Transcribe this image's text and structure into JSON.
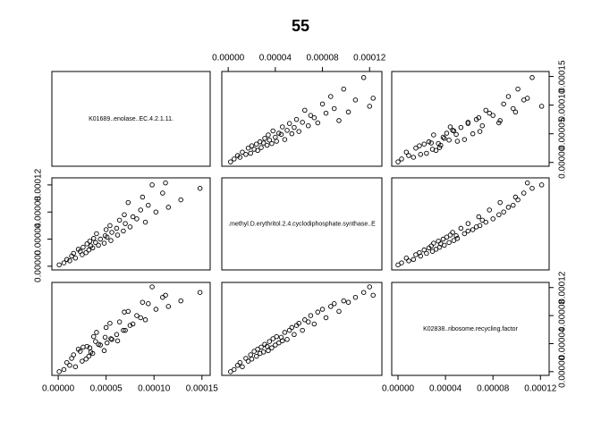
{
  "chart_data": {
    "type": "pairs",
    "title": "55",
    "variables": [
      {
        "name": "K01689..enolase..EC.4.2.1.11.",
        "values": [
          1e-06,
          6e-06,
          1.2e-05,
          9e-06,
          1.8e-05,
          1.4e-05,
          2.5e-05,
          1.6e-05,
          2.9e-05,
          2.3e-05,
          3.2e-05,
          2.1e-05,
          3.6e-05,
          2.6e-05,
          3.4e-05,
          4.2e-05,
          3e-05,
          4.8e-05,
          3.9e-05,
          3.3e-05,
          5.5e-05,
          4.4e-05,
          3.7e-05,
          5.1e-05,
          4.9e-05,
          6.2e-05,
          4e-05,
          5.6e-05,
          6.8e-05,
          5e-05,
          6.1e-05,
          7.5e-05,
          5.4e-05,
          7e-05,
          9.1e-05,
          6.4e-05,
          8.2e-05,
          7.8e-05,
          6.9e-05,
          0.000102,
          8.6e-05,
          0.000115,
          9.4e-05,
          7.3e-05,
          0.000128,
          8.8e-05,
          0.000109,
          0.000148,
          9.8e-05,
          0.000112
        ],
        "lim": [
          0,
          0.000152
        ],
        "ticks": [
          {
            "value": 0,
            "label": "0.00000"
          },
          {
            "value": 5e-05,
            "label": "0.00005"
          },
          {
            "value": 0.0001,
            "label": "0.00010"
          },
          {
            "value": 0.00015,
            "label": "0.00015"
          }
        ]
      },
      {
        "name": ".methyl.D.erythritol.2.4.cyclodiphosphate.synthase..E",
        "values": [
          2e-06,
          5e-06,
          8e-06,
          1e-05,
          1.2e-05,
          1.5e-05,
          1.7e-05,
          1.9e-05,
          2e-05,
          2.2e-05,
          2.4e-05,
          2.5e-05,
          2.7e-05,
          2.8e-05,
          3e-05,
          3.1e-05,
          3.3e-05,
          3.4e-05,
          3.5e-05,
          3.7e-05,
          3.8e-05,
          4e-05,
          4.1e-05,
          4.3e-05,
          4.5e-05,
          4.6e-05,
          4.8e-05,
          5e-05,
          5.2e-05,
          5.4e-05,
          5.6e-05,
          5.8e-05,
          6e-05,
          6.3e-05,
          6.5e-05,
          6.8e-05,
          7e-05,
          7.3e-05,
          7.6e-05,
          8e-05,
          8.3e-05,
          8.7e-05,
          9e-05,
          9.4e-05,
          9.8e-05,
          0.000102,
          0.000108,
          0.000115,
          0.00012,
          0.000123
        ],
        "lim": [
          0,
          0.000125
        ],
        "ticks": [
          {
            "value": 0,
            "label": "0.00000"
          },
          {
            "value": 4e-05,
            "label": "0.00004"
          },
          {
            "value": 8e-05,
            "label": "0.00008"
          },
          {
            "value": 0.00012,
            "label": "0.00012"
          }
        ]
      },
      {
        "name": "K02838..ribosome.recycling.factor",
        "values": [
          0.0,
          3e-06,
          9e-06,
          1.3e-05,
          7e-06,
          1.9e-05,
          1.5e-05,
          2.4e-05,
          1.8e-05,
          2.9e-05,
          2.2e-05,
          3.2e-05,
          2.6e-05,
          3.5e-05,
          2.8e-05,
          3.9e-05,
          3.6e-05,
          3e-05,
          4.3e-05,
          3.4e-05,
          4.7e-05,
          3.8e-05,
          5e-05,
          4.1e-05,
          4.9e-05,
          4.4e-05,
          5.6e-05,
          4.6e-05,
          5.9e-05,
          6.3e-05,
          5.3e-05,
          6.6e-05,
          6.9e-05,
          5.9e-05,
          7.4e-05,
          7.1e-05,
          8e-05,
          6.8e-05,
          8.5e-05,
          8.9e-05,
          7.7e-05,
          9.3e-05,
          9.7e-05,
          8.6e-05,
          0.000101,
          9.9e-05,
          0.000106,
          0.000113,
          0.000121,
          0.000109
        ],
        "lim": [
          0,
          0.000122
        ],
        "ticks": [
          {
            "value": 0,
            "label": "0.00000"
          },
          {
            "value": 4e-05,
            "label": "0.00004"
          },
          {
            "value": 8e-05,
            "label": "0.00008"
          },
          {
            "value": 0.00012,
            "label": "0.00012"
          }
        ]
      }
    ]
  }
}
